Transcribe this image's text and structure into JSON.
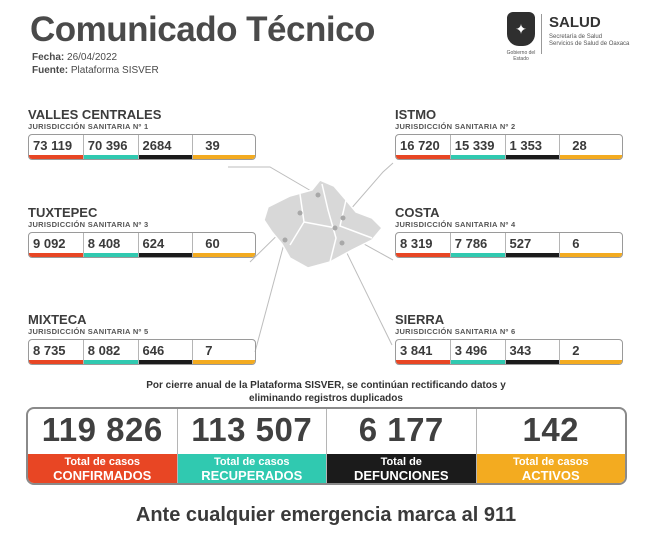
{
  "header": {
    "title": "Comunicado Técnico",
    "date_label": "Fecha:",
    "date_value": "26/04/2022",
    "source_label": "Fuente:",
    "source_value": "Plataforma SISVER"
  },
  "logo": {
    "name": "SALUD",
    "sub_line1": "Secretaría de Salud",
    "sub_line2": "Servicios de Salud de Oaxaca",
    "caption": "Gobierno del Estado"
  },
  "regions": [
    {
      "name": "VALLES CENTRALES",
      "jurisdiction": "JURISDICCIÓN SANITARIA Nº 1",
      "values": [
        "73 119",
        "70 396",
        "2684",
        "39"
      ]
    },
    {
      "name": "ISTMO",
      "jurisdiction": "JURISDICCIÓN SANITARIA Nº 2",
      "values": [
        "16 720",
        "15 339",
        "1 353",
        "28"
      ]
    },
    {
      "name": "TUXTEPEC",
      "jurisdiction": "JURISDICCIÓN SANITARIA Nº 3",
      "values": [
        "9 092",
        "8 408",
        "624",
        "60"
      ]
    },
    {
      "name": "COSTA",
      "jurisdiction": "JURISDICCIÓN SANITARIA Nº 4",
      "values": [
        "8 319",
        "7 786",
        "527",
        "6"
      ]
    },
    {
      "name": "MIXTECA",
      "jurisdiction": "JURISDICCIÓN SANITARIA Nº 5",
      "values": [
        "8 735",
        "8 082",
        "646",
        "7"
      ]
    },
    {
      "name": "SIERRA",
      "jurisdiction": "JURISDICCIÓN SANITARIA Nº 6",
      "values": [
        "3 841",
        "3 496",
        "343",
        "2"
      ]
    }
  ],
  "notice": {
    "line1": "Por cierre anual de la Plataforma SISVER, se continúan rectificando datos y",
    "line2": "eliminando registros duplicados"
  },
  "totals": [
    {
      "value": "119 826",
      "label1": "Total de casos",
      "label2": "CONFIRMADOS"
    },
    {
      "value": "113 507",
      "label1": "Total de casos",
      "label2": "RECUPERADOS"
    },
    {
      "value": "6 177",
      "label1": "Total de",
      "label2": "DEFUNCIONES"
    },
    {
      "value": "142",
      "label1": "Total de casos",
      "label2": "ACTIVOS"
    }
  ],
  "footer": "Ante cualquier emergencia marca al 911",
  "colors": {
    "confirmed": "#e84624",
    "recovered": "#30c9b0",
    "deaths": "#1b1b1b",
    "active": "#f3ab20"
  }
}
